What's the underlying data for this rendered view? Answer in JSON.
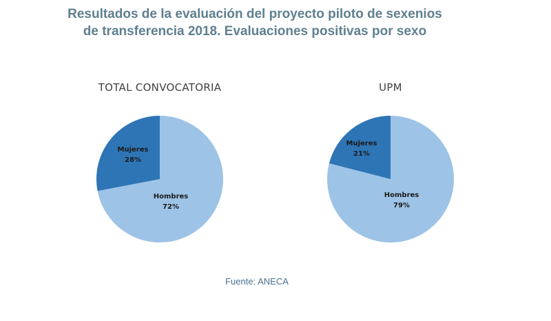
{
  "chart_data": [
    {
      "type": "pie",
      "title": "TOTAL CONVOCATORIA",
      "categories": [
        "Hombres",
        "Mujeres"
      ],
      "values": [
        72,
        28
      ],
      "labels": [
        "72%",
        "28%"
      ],
      "colors": [
        "#9DC3E6",
        "#2E75B6"
      ]
    },
    {
      "type": "pie",
      "title": "UPM",
      "categories": [
        "Hombres",
        "Mujeres"
      ],
      "values": [
        79,
        21
      ],
      "labels": [
        "79%",
        "21%"
      ],
      "colors": [
        "#9DC3E6",
        "#2E75B6"
      ]
    }
  ],
  "header": {
    "line1": "Resultados de la evaluación del proyecto piloto  de sexenios",
    "line2": "de transferencia 2018. Evaluaciones positivas por sexo"
  },
  "source": "Fuente: ANECA"
}
